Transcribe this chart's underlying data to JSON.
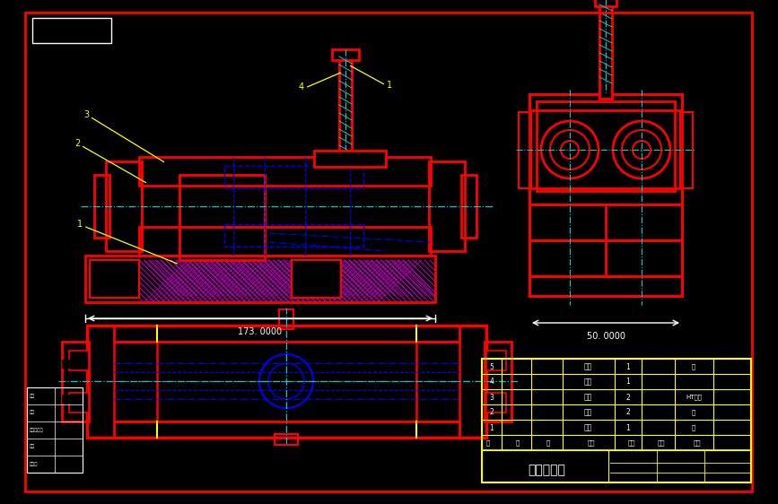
{
  "bg_color": "#000000",
  "gray_bg": "#8090a0",
  "red": "#ff0000",
  "blue": "#0000ff",
  "cyan": "#00cccc",
  "yellow": "#ffff00",
  "white": "#ffffff",
  "magenta": "#cc00cc",
  "dim_text": "173. 0000",
  "dim_text2": "50. 0000",
  "title_text": "夹具总装图",
  "fig_width": 8.67,
  "fig_height": 5.62
}
